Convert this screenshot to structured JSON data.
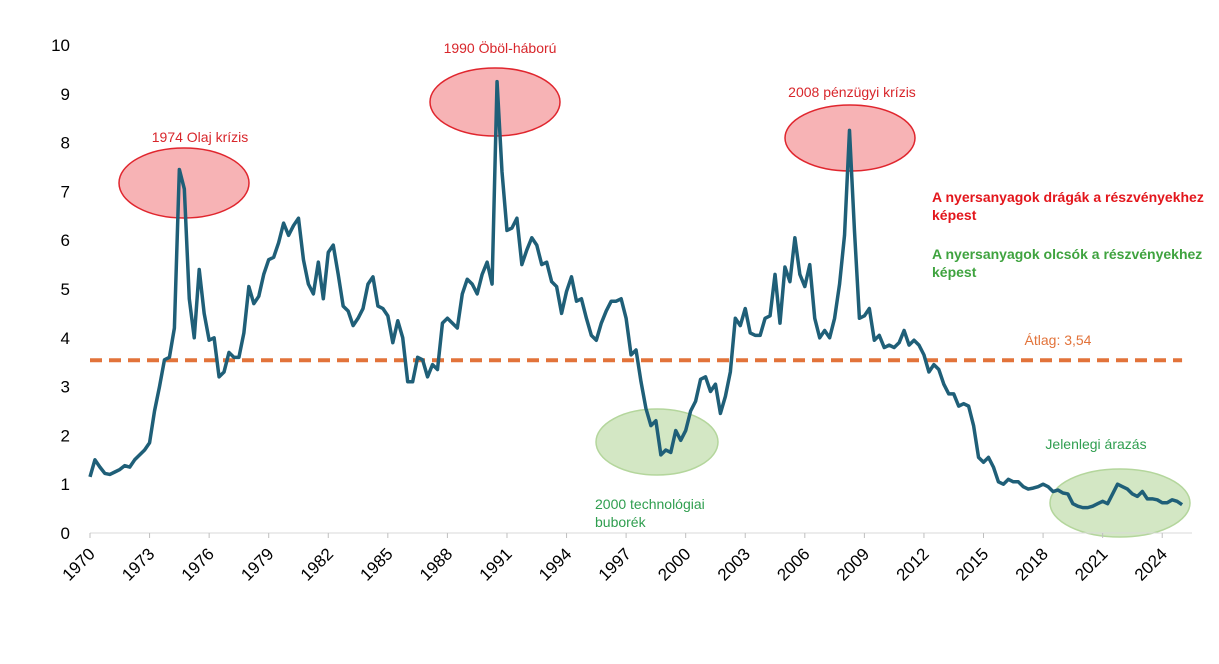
{
  "chart_data": {
    "type": "line",
    "x": [
      1970,
      1970.25,
      1970.5,
      1970.75,
      1971,
      1971.25,
      1971.5,
      1971.75,
      1972,
      1972.25,
      1972.5,
      1972.75,
      1973,
      1973.25,
      1973.5,
      1973.75,
      1974,
      1974.25,
      1974.5,
      1974.75,
      1975,
      1975.25,
      1975.5,
      1975.75,
      1976,
      1976.25,
      1976.5,
      1976.75,
      1977,
      1977.25,
      1977.5,
      1977.75,
      1978,
      1978.25,
      1978.5,
      1978.75,
      1979,
      1979.25,
      1979.5,
      1979.75,
      1980,
      1980.25,
      1980.5,
      1980.75,
      1981,
      1981.25,
      1981.5,
      1981.75,
      1982,
      1982.25,
      1982.5,
      1982.75,
      1983,
      1983.25,
      1983.5,
      1983.75,
      1984,
      1984.25,
      1984.5,
      1984.75,
      1985,
      1985.25,
      1985.5,
      1985.75,
      1986,
      1986.25,
      1986.5,
      1986.75,
      1987,
      1987.25,
      1987.5,
      1987.75,
      1988,
      1988.25,
      1988.5,
      1988.75,
      1989,
      1989.25,
      1989.5,
      1989.75,
      1990,
      1990.25,
      1990.5,
      1990.75,
      1991,
      1991.25,
      1991.5,
      1991.75,
      1992,
      1992.25,
      1992.5,
      1992.75,
      1993,
      1993.25,
      1993.5,
      1993.75,
      1994,
      1994.25,
      1994.5,
      1994.75,
      1995,
      1995.25,
      1995.5,
      1995.75,
      1996,
      1996.25,
      1996.5,
      1996.75,
      1997,
      1997.25,
      1997.5,
      1997.75,
      1998,
      1998.25,
      1998.5,
      1998.75,
      1999,
      1999.25,
      1999.5,
      1999.75,
      2000,
      2000.25,
      2000.5,
      2000.75,
      2001,
      2001.25,
      2001.5,
      2001.75,
      2002,
      2002.25,
      2002.5,
      2002.75,
      2003,
      2003.25,
      2003.5,
      2003.75,
      2004,
      2004.25,
      2004.5,
      2004.75,
      2005,
      2005.25,
      2005.5,
      2005.75,
      2006,
      2006.25,
      2006.5,
      2006.75,
      2007,
      2007.25,
      2007.5,
      2007.75,
      2008,
      2008.25,
      2008.5,
      2008.75,
      2009,
      2009.25,
      2009.5,
      2009.75,
      2010,
      2010.25,
      2010.5,
      2010.75,
      2011,
      2011.25,
      2011.5,
      2011.75,
      2012,
      2012.25,
      2012.5,
      2012.75,
      2013,
      2013.25,
      2013.5,
      2013.75,
      2014,
      2014.25,
      2014.5,
      2014.75,
      2015,
      2015.25,
      2015.5,
      2015.75,
      2016,
      2016.25,
      2016.5,
      2016.75,
      2017,
      2017.25,
      2017.5,
      2017.75,
      2018,
      2018.25,
      2018.5,
      2018.75,
      2019,
      2019.25,
      2019.5,
      2019.75,
      2020,
      2020.25,
      2020.5,
      2020.75,
      2021,
      2021.25,
      2021.5,
      2021.75,
      2022,
      2022.25,
      2022.5,
      2022.75,
      2023,
      2023.25,
      2023.5,
      2023.75,
      2024,
      2024.25,
      2024.5,
      2024.75,
      2025
    ],
    "series": [
      {
        "color": "#1f5f78",
        "values": [
          1.15,
          1.5,
          1.35,
          1.22,
          1.2,
          1.25,
          1.3,
          1.38,
          1.35,
          1.5,
          1.6,
          1.7,
          1.85,
          2.5,
          3.0,
          3.55,
          3.6,
          4.2,
          7.45,
          7.05,
          4.8,
          4.0,
          5.4,
          4.5,
          3.95,
          4.0,
          3.2,
          3.3,
          3.7,
          3.6,
          3.6,
          4.1,
          5.05,
          4.7,
          4.85,
          5.3,
          5.6,
          5.65,
          5.95,
          6.35,
          6.1,
          6.3,
          6.45,
          5.6,
          5.1,
          4.9,
          5.55,
          4.8,
          5.75,
          5.9,
          5.3,
          4.65,
          4.55,
          4.25,
          4.4,
          4.6,
          5.1,
          5.25,
          4.65,
          4.6,
          4.45,
          3.9,
          4.35,
          4.0,
          3.1,
          3.1,
          3.6,
          3.55,
          3.2,
          3.45,
          3.35,
          4.3,
          4.4,
          4.3,
          4.2,
          4.9,
          5.2,
          5.1,
          4.9,
          5.3,
          5.55,
          5.1,
          9.25,
          7.4,
          6.2,
          6.25,
          6.45,
          5.5,
          5.8,
          6.05,
          5.9,
          5.5,
          5.55,
          5.15,
          5.05,
          4.5,
          4.95,
          5.25,
          4.75,
          4.8,
          4.4,
          4.05,
          3.95,
          4.3,
          4.55,
          4.75,
          4.75,
          4.8,
          4.4,
          3.65,
          3.75,
          3.1,
          2.55,
          2.2,
          2.3,
          1.6,
          1.7,
          1.65,
          2.1,
          1.9,
          2.1,
          2.5,
          2.7,
          3.15,
          3.2,
          2.9,
          3.05,
          2.45,
          2.8,
          3.3,
          4.4,
          4.25,
          4.6,
          4.1,
          4.05,
          4.05,
          4.4,
          4.45,
          5.3,
          4.3,
          5.45,
          5.15,
          6.05,
          5.3,
          5.05,
          5.5,
          4.4,
          4.0,
          4.15,
          4.0,
          4.4,
          5.1,
          6.1,
          8.25,
          6.2,
          4.4,
          4.45,
          4.6,
          3.95,
          4.05,
          3.8,
          3.85,
          3.8,
          3.9,
          4.15,
          3.85,
          3.95,
          3.85,
          3.65,
          3.3,
          3.45,
          3.35,
          3.05,
          2.85,
          2.85,
          2.6,
          2.65,
          2.6,
          2.2,
          1.55,
          1.45,
          1.55,
          1.35,
          1.05,
          1.0,
          1.1,
          1.05,
          1.05,
          0.95,
          0.9,
          0.92,
          0.95,
          1.0,
          0.95,
          0.85,
          0.88,
          0.82,
          0.8,
          0.6,
          0.55,
          0.52,
          0.52,
          0.55,
          0.6,
          0.65,
          0.6,
          0.8,
          1.0,
          0.95,
          0.9,
          0.8,
          0.75,
          0.85,
          0.7,
          0.7,
          0.68,
          0.62,
          0.62,
          0.68,
          0.65,
          0.58
        ]
      }
    ],
    "xlim": [
      1970,
      2025.5
    ],
    "xticks": [
      1970,
      1973,
      1976,
      1979,
      1982,
      1985,
      1988,
      1991,
      1994,
      1997,
      2000,
      2003,
      2006,
      2009,
      2012,
      2015,
      2018,
      2021,
      2024
    ],
    "ylim": [
      0,
      10
    ],
    "yticks": [
      0,
      1,
      2,
      3,
      4,
      5,
      6,
      7,
      8,
      9,
      10
    ],
    "average_line": {
      "value": 3.54,
      "label": "Átlag: 3,54",
      "color": "#e2733a"
    },
    "annotations": [
      {
        "lines": [
          "1974 Olaj krízis"
        ],
        "color": "#d8262b"
      },
      {
        "lines": [
          "1990 Öböl-háború"
        ],
        "color": "#d8262b"
      },
      {
        "lines": [
          "2008 pénzügyi krízis"
        ],
        "color": "#d8262b"
      },
      {
        "lines": [
          "2000 technológiai",
          "buborék"
        ],
        "color": "#2f9e4f"
      },
      {
        "lines": [
          "Jelenlegi árazás"
        ],
        "color": "#2f9e4f"
      }
    ],
    "notes": [
      {
        "text": "A nyersanyagok drágák a részvényekhez képest",
        "color": "#e3161c"
      },
      {
        "text": "A nyersanyagok olcsók a részvényekhez képest",
        "color": "#3fa33f"
      }
    ]
  }
}
